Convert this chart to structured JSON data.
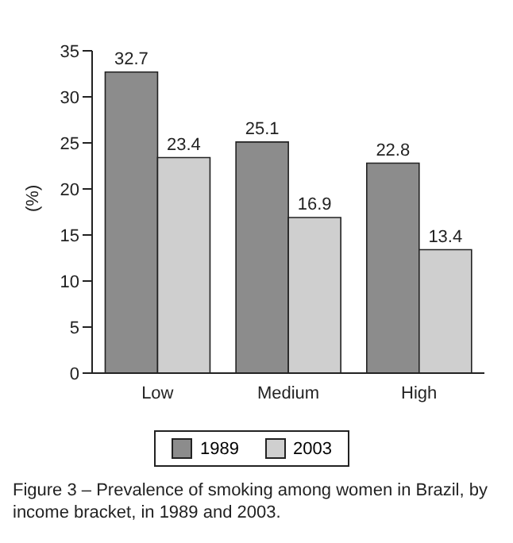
{
  "chart_data": {
    "type": "bar",
    "ylabel": "(%)",
    "categories": [
      "Low",
      "Medium",
      "High"
    ],
    "series": [
      {
        "name": "1989",
        "color": "#8c8c8c",
        "values": [
          32.7,
          25.1,
          22.8
        ]
      },
      {
        "name": "2003",
        "color": "#cfcfcf",
        "values": [
          23.4,
          16.9,
          13.4
        ]
      }
    ],
    "ylim": [
      0,
      35
    ],
    "yticks": [
      0,
      5,
      10,
      15,
      20,
      25,
      30,
      35
    ],
    "grid": false,
    "legend": "bottom",
    "data_labels": true,
    "annotations": [
      "Figure 3 – Prevalence of smoking among women in Brazil, by income bracket, in 1989 and 2003."
    ]
  }
}
